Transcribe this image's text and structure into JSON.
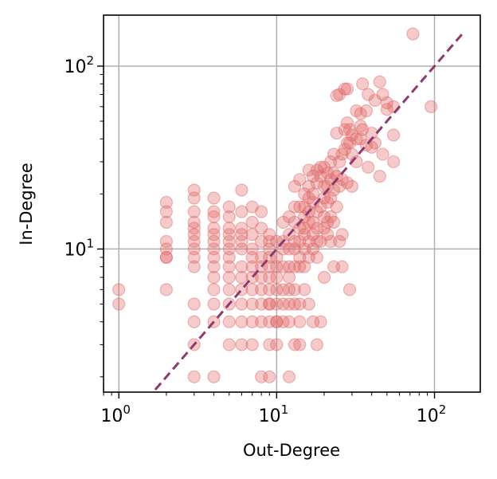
{
  "chart_data": {
    "type": "scatter",
    "xlabel": "Out-Degree",
    "ylabel": "In-Degree",
    "xscale": "log",
    "yscale": "log",
    "xlim": [
      0.8,
      195
    ],
    "ylim": [
      1.65,
      190
    ],
    "grid": true,
    "x_ticks": [
      {
        "value": 1,
        "base": "10",
        "exp": "0"
      },
      {
        "value": 10,
        "base": "10",
        "exp": "1"
      },
      {
        "value": 100,
        "base": "10",
        "exp": "2"
      }
    ],
    "y_ticks": [
      {
        "value": 10,
        "base": "10",
        "exp": "1"
      },
      {
        "value": 100,
        "base": "10",
        "exp": "2"
      }
    ],
    "point_color": "#e06666",
    "reference_line": {
      "from": [
        1.7,
        1.7
      ],
      "to": [
        150,
        150
      ],
      "color": "#8e3a6e",
      "style": "dashed"
    },
    "series": [
      {
        "x": [
          1,
          1,
          2,
          2,
          2,
          2,
          2,
          2,
          2,
          2,
          3,
          3,
          3,
          3,
          3,
          3,
          3,
          3,
          3,
          3,
          3,
          3,
          3,
          3,
          4,
          4,
          4,
          4,
          4,
          4,
          4,
          4,
          4,
          4,
          4,
          4,
          4,
          4,
          5,
          5,
          5,
          5,
          5,
          5,
          5,
          5,
          5,
          5,
          5,
          5,
          5,
          6,
          6,
          6,
          6,
          6,
          6,
          6,
          6,
          6,
          6,
          6,
          6,
          7,
          7,
          7,
          7,
          7,
          7,
          7,
          7,
          7,
          7,
          7,
          8,
          8,
          8,
          8,
          8,
          8,
          8,
          8,
          8,
          8,
          9,
          9,
          9,
          9,
          9,
          9,
          9,
          9,
          9,
          9,
          9,
          9,
          10,
          10,
          10,
          10,
          10,
          10,
          10,
          10,
          10,
          11,
          11,
          11,
          11,
          11,
          11,
          11,
          12,
          12,
          12,
          12,
          12,
          12,
          12,
          12,
          12,
          13,
          13,
          13,
          13,
          13,
          13,
          13,
          13,
          13,
          14,
          14,
          14,
          14,
          14,
          14,
          14,
          14,
          14,
          15,
          15,
          15,
          15,
          15,
          15,
          15,
          15,
          16,
          16,
          16,
          16,
          16,
          16,
          16,
          16,
          17,
          17,
          17,
          17,
          17,
          17,
          17,
          18,
          18,
          18,
          18,
          18,
          18,
          18,
          19,
          19,
          19,
          19,
          19,
          20,
          20,
          20,
          20,
          20,
          20,
          21,
          21,
          21,
          21,
          21,
          22,
          22,
          22,
          22,
          22,
          23,
          23,
          23,
          23,
          23,
          24,
          24,
          24,
          24,
          25,
          25,
          25,
          25,
          26,
          26,
          26,
          26,
          27,
          27,
          27,
          28,
          28,
          28,
          28,
          29,
          29,
          29,
          30,
          30,
          30,
          32,
          32,
          32,
          34,
          34,
          34,
          35,
          35,
          37,
          37,
          38,
          38,
          40,
          40,
          42,
          42,
          45,
          45,
          47,
          47,
          50,
          50,
          55,
          55,
          55,
          73,
          95
        ],
        "y": [
          6,
          5,
          18,
          16,
          14,
          11,
          10,
          9,
          9,
          6,
          21,
          19,
          16,
          14,
          13,
          12,
          11,
          10,
          9,
          8,
          5,
          4,
          3,
          2,
          19,
          16,
          15,
          13,
          12,
          11,
          10,
          9,
          8,
          7,
          6,
          5,
          4,
          2,
          17,
          15,
          13,
          12,
          11,
          10,
          9,
          8,
          7,
          6,
          5,
          4,
          3,
          21,
          16,
          13,
          12,
          11,
          10,
          8,
          7,
          6,
          5,
          4,
          3,
          17,
          14,
          12,
          10,
          9,
          8,
          7,
          6,
          5,
          4,
          3,
          16,
          13,
          11,
          9,
          8,
          7,
          6,
          5,
          4,
          2,
          12,
          11,
          10,
          9,
          8,
          7,
          6,
          5,
          5,
          4,
          3,
          2,
          11,
          9,
          8,
          7,
          6,
          5,
          4,
          4,
          3,
          14,
          11,
          10,
          8,
          6,
          5,
          4,
          15,
          12,
          10,
          8,
          7,
          6,
          5,
          4,
          2,
          22,
          17,
          14,
          11,
          10,
          8,
          6,
          5,
          3,
          24,
          17,
          13,
          11,
          9,
          8,
          5,
          4,
          3,
          20,
          17,
          15,
          13,
          12,
          10,
          8,
          6,
          27,
          22,
          19,
          16,
          14,
          11,
          9,
          5,
          25,
          20,
          18,
          14,
          12,
          10,
          4,
          27,
          23,
          16,
          13,
          11,
          9,
          3,
          28,
          25,
          17,
          11,
          4,
          28,
          22,
          19,
          15,
          13,
          7,
          26,
          22,
          18,
          14,
          12,
          30,
          24,
          19,
          15,
          11,
          33,
          26,
          21,
          14,
          8,
          69,
          43,
          25,
          17,
          70,
          30,
          22,
          11,
          33,
          24,
          12,
          8,
          75,
          45,
          35,
          75,
          49,
          38,
          23,
          45,
          38,
          6,
          42,
          33,
          22,
          57,
          40,
          30,
          55,
          47,
          40,
          80,
          45,
          57,
          37,
          70,
          28,
          43,
          36,
          65,
          38,
          82,
          25,
          70,
          33,
          63,
          58,
          60,
          42,
          30,
          150,
          60
        ]
      }
    ]
  }
}
